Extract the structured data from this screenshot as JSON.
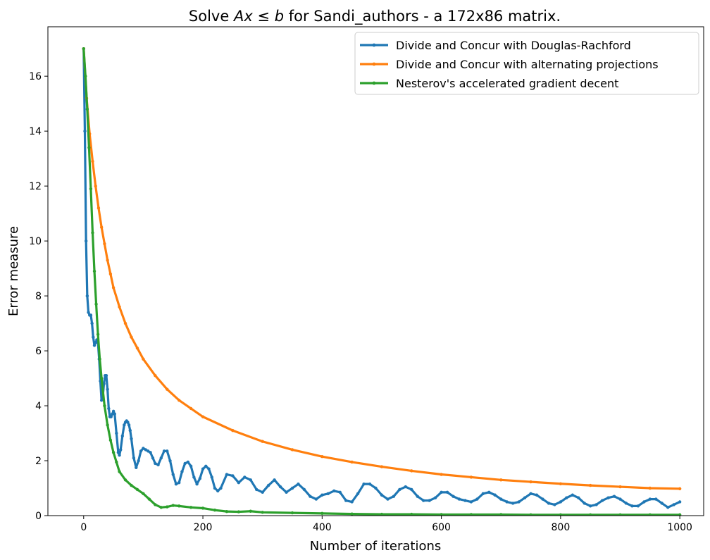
{
  "chart_data": {
    "type": "line",
    "title": "Solve Ax ≤ b for Sandi_authors - a 172x86 matrix.",
    "title_parts": {
      "before": "Solve ",
      "A": "A",
      "x": "x",
      "le": " ≤ ",
      "b": "b",
      "after": " for Sandi_authors - a 172x86 matrix."
    },
    "xlabel": "Number of iterations",
    "ylabel": "Error measure",
    "xlim": [
      -60,
      1040
    ],
    "ylim": [
      0,
      17.8
    ],
    "xticks": [
      0,
      200,
      400,
      600,
      800,
      1000
    ],
    "xtick_labels": [
      "0",
      "200",
      "400",
      "600",
      "800",
      "1000"
    ],
    "yticks": [
      0,
      2,
      4,
      6,
      8,
      10,
      12,
      14,
      16
    ],
    "ytick_labels": [
      "0",
      "2",
      "4",
      "6",
      "8",
      "10",
      "12",
      "14",
      "16"
    ],
    "grid": false,
    "legend_position": "top-right",
    "series": [
      {
        "name": "Divide and Concur with Douglas-Rachford",
        "color": "#1f77b4",
        "x": [
          0,
          2,
          4,
          6,
          8,
          10,
          12,
          14,
          16,
          18,
          20,
          22,
          24,
          26,
          28,
          30,
          32,
          34,
          36,
          38,
          40,
          42,
          44,
          46,
          48,
          50,
          52,
          55,
          58,
          60,
          62,
          65,
          68,
          70,
          72,
          74,
          76,
          78,
          80,
          84,
          88,
          92,
          96,
          100,
          104,
          108,
          112,
          116,
          120,
          125,
          130,
          135,
          140,
          145,
          150,
          155,
          160,
          165,
          170,
          175,
          180,
          185,
          190,
          195,
          200,
          205,
          210,
          215,
          220,
          225,
          230,
          240,
          250,
          260,
          270,
          280,
          290,
          300,
          310,
          320,
          330,
          340,
          350,
          360,
          370,
          380,
          390,
          400,
          410,
          420,
          430,
          440,
          450,
          460,
          470,
          480,
          490,
          500,
          510,
          520,
          530,
          540,
          550,
          560,
          570,
          580,
          590,
          600,
          610,
          620,
          630,
          640,
          650,
          660,
          670,
          680,
          690,
          700,
          710,
          720,
          730,
          740,
          750,
          760,
          770,
          780,
          790,
          800,
          810,
          820,
          830,
          840,
          850,
          860,
          870,
          880,
          890,
          900,
          910,
          920,
          930,
          940,
          950,
          960,
          970,
          980,
          990,
          1000
        ],
        "y": [
          17.0,
          14.0,
          10.0,
          8.0,
          7.4,
          7.3,
          7.3,
          7.0,
          6.5,
          6.2,
          6.3,
          6.4,
          6.3,
          5.7,
          4.9,
          4.2,
          4.3,
          4.8,
          5.1,
          5.1,
          4.6,
          3.9,
          3.6,
          3.6,
          3.7,
          3.8,
          3.7,
          3.0,
          2.3,
          2.2,
          2.4,
          2.9,
          3.3,
          3.4,
          3.45,
          3.4,
          3.3,
          3.1,
          2.8,
          2.1,
          1.75,
          2.0,
          2.35,
          2.45,
          2.4,
          2.35,
          2.3,
          2.1,
          1.9,
          1.85,
          2.1,
          2.35,
          2.35,
          2.0,
          1.5,
          1.15,
          1.2,
          1.6,
          1.9,
          1.95,
          1.8,
          1.4,
          1.15,
          1.35,
          1.7,
          1.8,
          1.7,
          1.4,
          1.0,
          0.9,
          1.0,
          1.5,
          1.45,
          1.2,
          1.4,
          1.3,
          0.95,
          0.85,
          1.1,
          1.3,
          1.05,
          0.85,
          1.0,
          1.15,
          0.95,
          0.7,
          0.6,
          0.75,
          0.8,
          0.9,
          0.85,
          0.55,
          0.5,
          0.8,
          1.15,
          1.15,
          1.0,
          0.75,
          0.6,
          0.7,
          0.95,
          1.05,
          0.95,
          0.7,
          0.55,
          0.55,
          0.65,
          0.85,
          0.85,
          0.7,
          0.6,
          0.55,
          0.5,
          0.6,
          0.8,
          0.85,
          0.75,
          0.6,
          0.5,
          0.45,
          0.5,
          0.65,
          0.8,
          0.75,
          0.6,
          0.45,
          0.4,
          0.5,
          0.65,
          0.75,
          0.65,
          0.45,
          0.35,
          0.4,
          0.55,
          0.65,
          0.7,
          0.6,
          0.45,
          0.35,
          0.35,
          0.5,
          0.6,
          0.6,
          0.45,
          0.3,
          0.4,
          0.5
        ]
      },
      {
        "name": "Divide and Concur with alternating projections",
        "color": "#ff7f0e",
        "x": [
          0,
          5,
          10,
          15,
          20,
          25,
          30,
          35,
          40,
          45,
          50,
          60,
          70,
          80,
          90,
          100,
          120,
          140,
          160,
          180,
          200,
          250,
          300,
          350,
          400,
          450,
          500,
          550,
          600,
          650,
          700,
          750,
          800,
          850,
          900,
          950,
          1000
        ],
        "y": [
          17.0,
          15.2,
          13.9,
          12.9,
          12.0,
          11.2,
          10.5,
          9.9,
          9.3,
          8.8,
          8.3,
          7.6,
          7.0,
          6.5,
          6.1,
          5.7,
          5.1,
          4.6,
          4.2,
          3.9,
          3.6,
          3.1,
          2.7,
          2.4,
          2.15,
          1.95,
          1.78,
          1.63,
          1.5,
          1.4,
          1.3,
          1.23,
          1.16,
          1.1,
          1.05,
          1.0,
          0.98
        ]
      },
      {
        "name": "Nesterov's accelerated gradient decent",
        "color": "#2ca02c",
        "x": [
          0,
          3,
          6,
          9,
          12,
          15,
          18,
          21,
          24,
          27,
          30,
          35,
          40,
          45,
          50,
          55,
          60,
          70,
          80,
          90,
          100,
          110,
          120,
          130,
          140,
          150,
          160,
          180,
          200,
          220,
          240,
          260,
          280,
          300,
          350,
          400,
          450,
          500,
          550,
          600,
          650,
          700,
          750,
          800,
          850,
          900,
          950,
          1000
        ],
        "y": [
          17.0,
          16.0,
          14.8,
          13.4,
          11.9,
          10.3,
          8.9,
          7.7,
          6.6,
          5.7,
          5.0,
          4.0,
          3.3,
          2.75,
          2.3,
          1.95,
          1.6,
          1.3,
          1.1,
          0.95,
          0.8,
          0.6,
          0.4,
          0.3,
          0.32,
          0.37,
          0.35,
          0.3,
          0.27,
          0.2,
          0.15,
          0.14,
          0.16,
          0.12,
          0.1,
          0.08,
          0.06,
          0.05,
          0.05,
          0.04,
          0.04,
          0.04,
          0.03,
          0.03,
          0.03,
          0.03,
          0.03,
          0.03
        ]
      }
    ]
  }
}
